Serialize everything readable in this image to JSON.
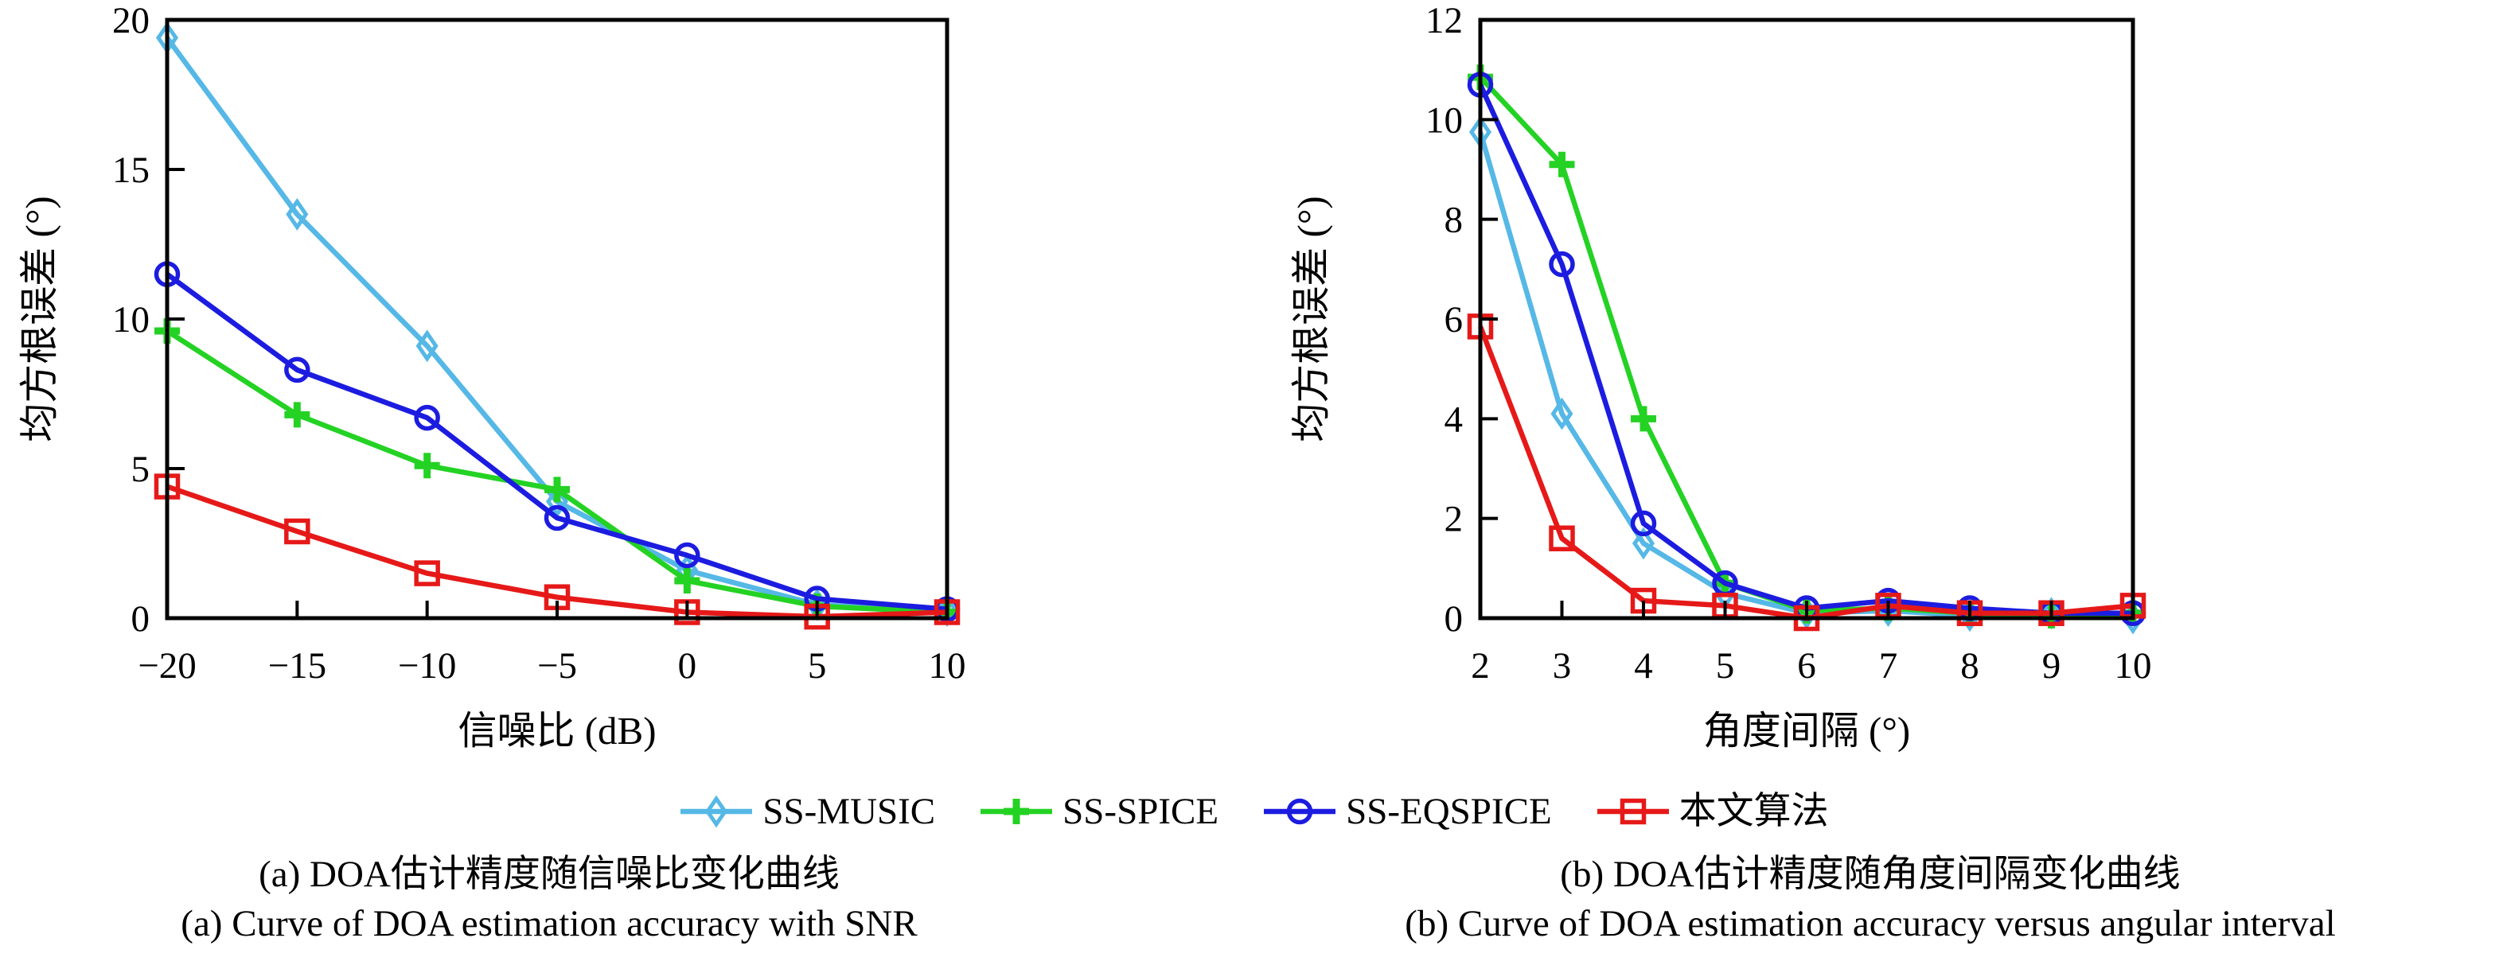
{
  "figure_title": "",
  "legend": {
    "items": [
      {
        "label": "SS-MUSIC",
        "marker": "diamond",
        "color": "#55B8E6"
      },
      {
        "label": "SS-SPICE",
        "marker": "plus",
        "color": "#24D224"
      },
      {
        "label": "SS-EQSPICE",
        "marker": "circle",
        "color": "#1C1CE0"
      },
      {
        "label": "本文算法",
        "marker": "square",
        "color": "#E61919"
      }
    ]
  },
  "colors": {
    "axis": "#000000",
    "background": "#ffffff",
    "ss_music": "#55B8E6",
    "ss_spice": "#24D224",
    "ss_eqspice": "#1C1CE0",
    "proposed": "#E61919"
  },
  "chart_data": [
    {
      "type": "line",
      "title": "",
      "xlabel": "信噪比 (dB)",
      "ylabel": "均方根误差 (°)",
      "x": [
        -20,
        -15,
        -10,
        -5,
        0,
        5,
        10
      ],
      "xtick_labels": [
        "−20",
        "−15",
        "−10",
        "−5",
        "0",
        "5",
        "10"
      ],
      "yticks": [
        0,
        5,
        10,
        15,
        20
      ],
      "ytick_labels": [
        "0",
        "5",
        "10",
        "15",
        "20"
      ],
      "xlim": [
        -20,
        10
      ],
      "ylim": [
        0,
        20
      ],
      "grid": false,
      "series": [
        {
          "name": "SS-MUSIC",
          "marker": "diamond",
          "color": "#55B8E6",
          "values": [
            19.4,
            13.5,
            9.1,
            3.9,
            1.6,
            0.45,
            0.25
          ]
        },
        {
          "name": "SS-SPICE",
          "marker": "plus",
          "color": "#24D224",
          "values": [
            9.6,
            6.8,
            5.1,
            4.3,
            1.25,
            0.4,
            0.2
          ]
        },
        {
          "name": "SS-EQSPICE",
          "marker": "circle",
          "color": "#1C1CE0",
          "values": [
            11.5,
            8.3,
            6.7,
            3.35,
            2.1,
            0.65,
            0.3
          ]
        },
        {
          "name": "本文算法",
          "marker": "square",
          "color": "#E61919",
          "values": [
            4.4,
            2.9,
            1.5,
            0.7,
            0.2,
            0.05,
            0.2
          ]
        }
      ],
      "caption_cn": "(a) DOA估计精度随信噪比变化曲线",
      "caption_en": "(a) Curve of DOA estimation accuracy with SNR"
    },
    {
      "type": "line",
      "title": "",
      "xlabel": "角度间隔 (°)",
      "ylabel": "均方根误差 (°)",
      "x": [
        2,
        3,
        4,
        5,
        6,
        7,
        8,
        9,
        10
      ],
      "xtick_labels": [
        "2",
        "3",
        "4",
        "5",
        "6",
        "7",
        "8",
        "9",
        "10"
      ],
      "yticks": [
        0,
        2,
        4,
        6,
        8,
        10,
        12
      ],
      "ytick_labels": [
        "0",
        "2",
        "4",
        "6",
        "8",
        "10",
        "12"
      ],
      "xlim": [
        2,
        10
      ],
      "ylim": [
        0,
        12
      ],
      "grid": false,
      "series": [
        {
          "name": "SS-MUSIC",
          "marker": "diamond",
          "color": "#55B8E6",
          "values": [
            9.75,
            4.1,
            1.5,
            0.5,
            0.1,
            0.15,
            0.05,
            0.1,
            0.0
          ]
        },
        {
          "name": "SS-SPICE",
          "marker": "plus",
          "color": "#24D224",
          "values": [
            10.85,
            9.1,
            4.0,
            0.7,
            0.15,
            0.2,
            0.1,
            0.05,
            0.1
          ]
        },
        {
          "name": "SS-EQSPICE",
          "marker": "circle",
          "color": "#1C1CE0",
          "values": [
            10.7,
            7.1,
            1.9,
            0.7,
            0.2,
            0.35,
            0.2,
            0.1,
            0.1
          ]
        },
        {
          "name": "本文算法",
          "marker": "square",
          "color": "#E61919",
          "values": [
            5.85,
            1.6,
            0.35,
            0.25,
            0.0,
            0.25,
            0.1,
            0.1,
            0.25
          ]
        }
      ],
      "caption_cn": "(b) DOA估计精度随角度间隔变化曲线",
      "caption_en": "(b) Curve of DOA estimation accuracy versus angular interval"
    }
  ]
}
